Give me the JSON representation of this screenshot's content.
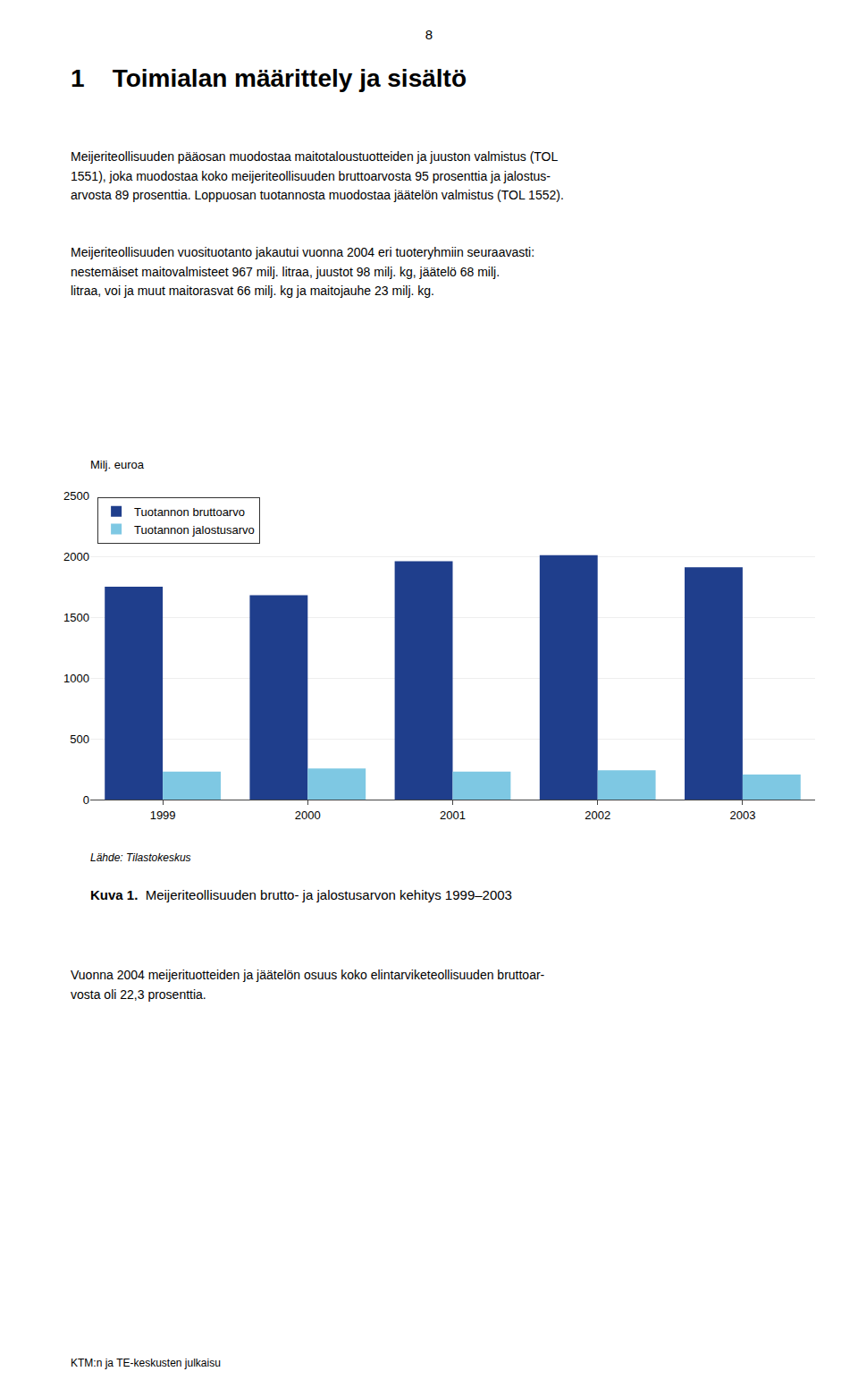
{
  "page": {
    "page_number": "8",
    "chapter_title": "1    Toimialan määrittely ja sisältö",
    "paragraphs_before": [
      "Meijeriteollisuuden pääosan muodostaa maitotaloustuotteiden ja juuston valmistus (TOL\n1551), joka muodostaa koko meijeriteollisuuden bruttoarvosta 95 prosenttia ja jalostus-\narvosta 89 prosenttia. Loppuosan tuotannosta muodostaa jäätelön valmistus (TOL 1552).",
      "Meijeriteollisuuden vuosituotanto jakautui vuonna 2004 eri tuoteryhmiin seuraavasti:\nnestemäiset maitovalmisteet 967 milj. litraa, juustot 98 milj. kg, jäätelö 68 milj.\nlitraa, voi ja muut maitorasvat 66 milj. kg ja maitojauhe 23 milj. kg."
    ],
    "paragraphs_after": [
      "Vuonna 2004 meijerituotteiden ja jäätelön osuus koko elintarviketeollisuuden bruttoar-\nvosta oli 22,3 prosenttia."
    ],
    "footer": "KTM:n ja TE-keskusten julkaisu"
  },
  "chart_data": {
    "type": "bar",
    "y_label": "Milj. euroa",
    "source": "Lähde: Tilastokeskus",
    "caption_bold": "Kuva 1.",
    "caption": "Meijeriteollisuuden brutto- ja jalostusarvon kehitys 1999–2003",
    "categories": [
      "1999",
      "2000",
      "2001",
      "2002",
      "2003"
    ],
    "series": [
      {
        "name": "Tuotannon bruttoarvo",
        "color": "#1F3E8C",
        "values": [
          1750,
          1680,
          1960,
          2010,
          1910
        ]
      },
      {
        "name": "Tuotannon jalostusarvo",
        "color": "#7EC8E3",
        "values": [
          230,
          255,
          230,
          240,
          205
        ]
      }
    ],
    "ylim": [
      0,
      2500
    ],
    "yticks": [
      0,
      500,
      1000,
      1500,
      2000,
      2500
    ],
    "grid": true,
    "legend": "upper left"
  }
}
